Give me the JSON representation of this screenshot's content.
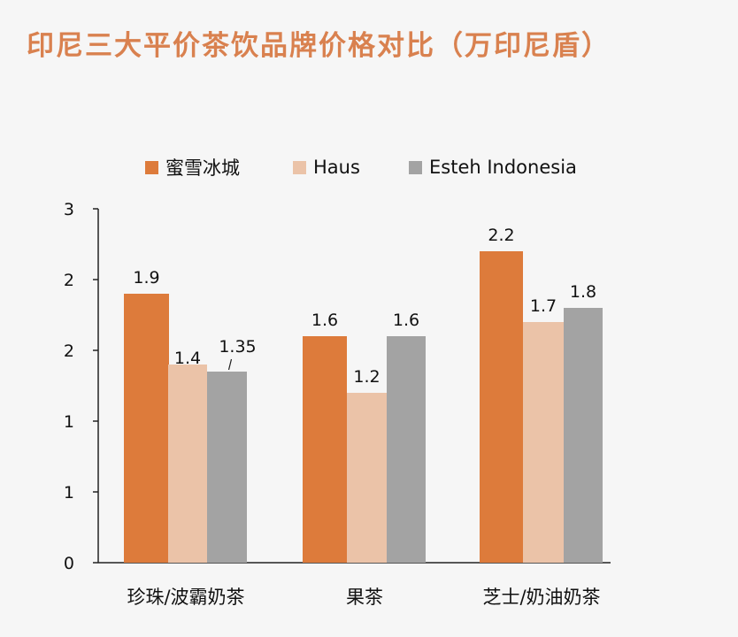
{
  "colors": {
    "title": "#d9814f",
    "axis": "#222222",
    "background": "#f6f6f6"
  },
  "chart_data": {
    "type": "bar",
    "title": "印尼三大平价茶饮品牌价格对比（万印尼盾）",
    "xlabel": "",
    "ylabel": "",
    "categories": [
      "珍珠/波霸奶茶",
      "果茶",
      "芝士/奶油奶茶"
    ],
    "series": [
      {
        "name": "蜜雪冰城",
        "color": "#dd7b3b",
        "values": [
          1.9,
          1.6,
          2.2
        ],
        "labels": [
          "1.9",
          "1.6",
          "2.2"
        ]
      },
      {
        "name": "Haus",
        "color": "#ebc3a8",
        "values": [
          1.4,
          1.2,
          1.7
        ],
        "labels": [
          "1.4",
          "1.2",
          "1.7"
        ]
      },
      {
        "name": "Esteh Indonesia",
        "color": "#a3a3a3",
        "values": [
          1.35,
          1.6,
          1.8
        ],
        "labels": [
          "1.35",
          "1.6",
          "1.8"
        ]
      }
    ],
    "ylim": [
      0,
      2.5
    ],
    "y_ticks": [
      {
        "value": 0,
        "label": "0"
      },
      {
        "value": 0.5,
        "label": "1"
      },
      {
        "value": 1.0,
        "label": "1"
      },
      {
        "value": 1.5,
        "label": "2"
      },
      {
        "value": 2.0,
        "label": "2"
      },
      {
        "value": 2.5,
        "label": "3"
      }
    ],
    "grid": false,
    "legend_position": "top"
  }
}
